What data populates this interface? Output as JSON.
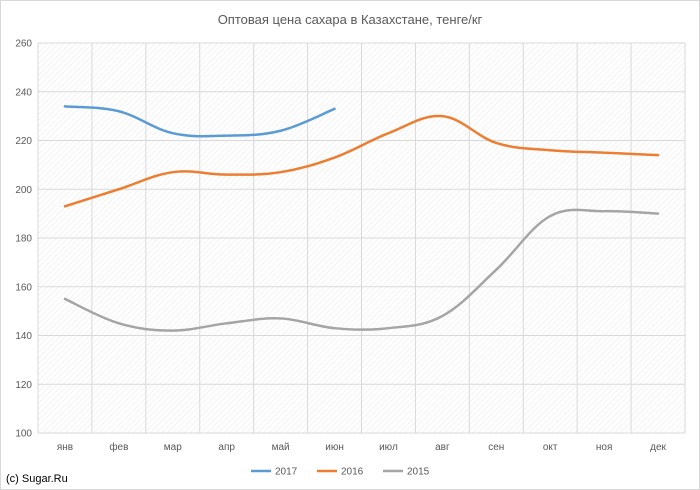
{
  "credit": "(c) Sugar.Ru",
  "chart_data": {
    "type": "line",
    "title": "Оптовая цена сахара в Казахстане, тенге/кг",
    "xlabel": "",
    "ylabel": "",
    "ylim": [
      100,
      260
    ],
    "yticks": [
      100,
      120,
      140,
      160,
      180,
      200,
      220,
      240,
      260
    ],
    "grid": true,
    "legend_position": "bottom",
    "categories": [
      "янв",
      "фев",
      "мар",
      "апр",
      "май",
      "июн",
      "июл",
      "авг",
      "сен",
      "окт",
      "ноя",
      "дек"
    ],
    "series": [
      {
        "name": "2017",
        "color": "#5b9bd5",
        "values": [
          234,
          232,
          223,
          222,
          224,
          233,
          null,
          null,
          null,
          null,
          null,
          null
        ]
      },
      {
        "name": "2016",
        "color": "#ed7d31",
        "values": [
          193,
          200,
          207,
          206,
          207,
          213,
          223,
          230,
          219,
          216,
          215,
          214
        ]
      },
      {
        "name": "2015",
        "color": "#a5a5a5",
        "values": [
          155,
          145,
          142,
          145,
          147,
          143,
          143,
          148,
          167,
          189,
          191,
          190
        ]
      }
    ]
  }
}
